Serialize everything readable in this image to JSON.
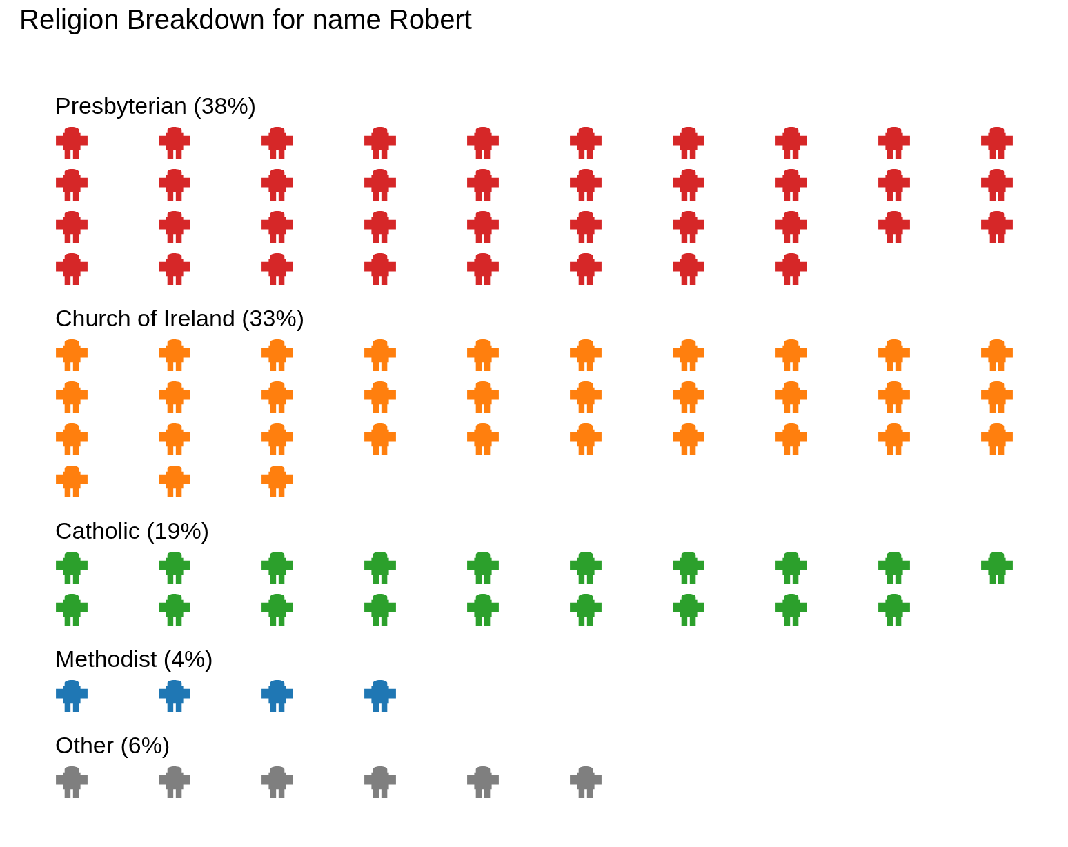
{
  "chart_data": {
    "type": "other",
    "title": "Religion Breakdown for name Robert",
    "categories": [
      "Presbyterian",
      "Church of Ireland",
      "Catholic",
      "Methodist",
      "Other"
    ],
    "values": [
      38,
      33,
      19,
      4,
      6
    ],
    "value_labels": [
      "(38%)",
      "(33%)",
      "(19%)",
      "(4%)",
      "(6%)"
    ],
    "colors": [
      "#d62728",
      "#ff7f0e",
      "#2ca02c",
      "#1f77b4",
      "#7f7f7f"
    ]
  }
}
